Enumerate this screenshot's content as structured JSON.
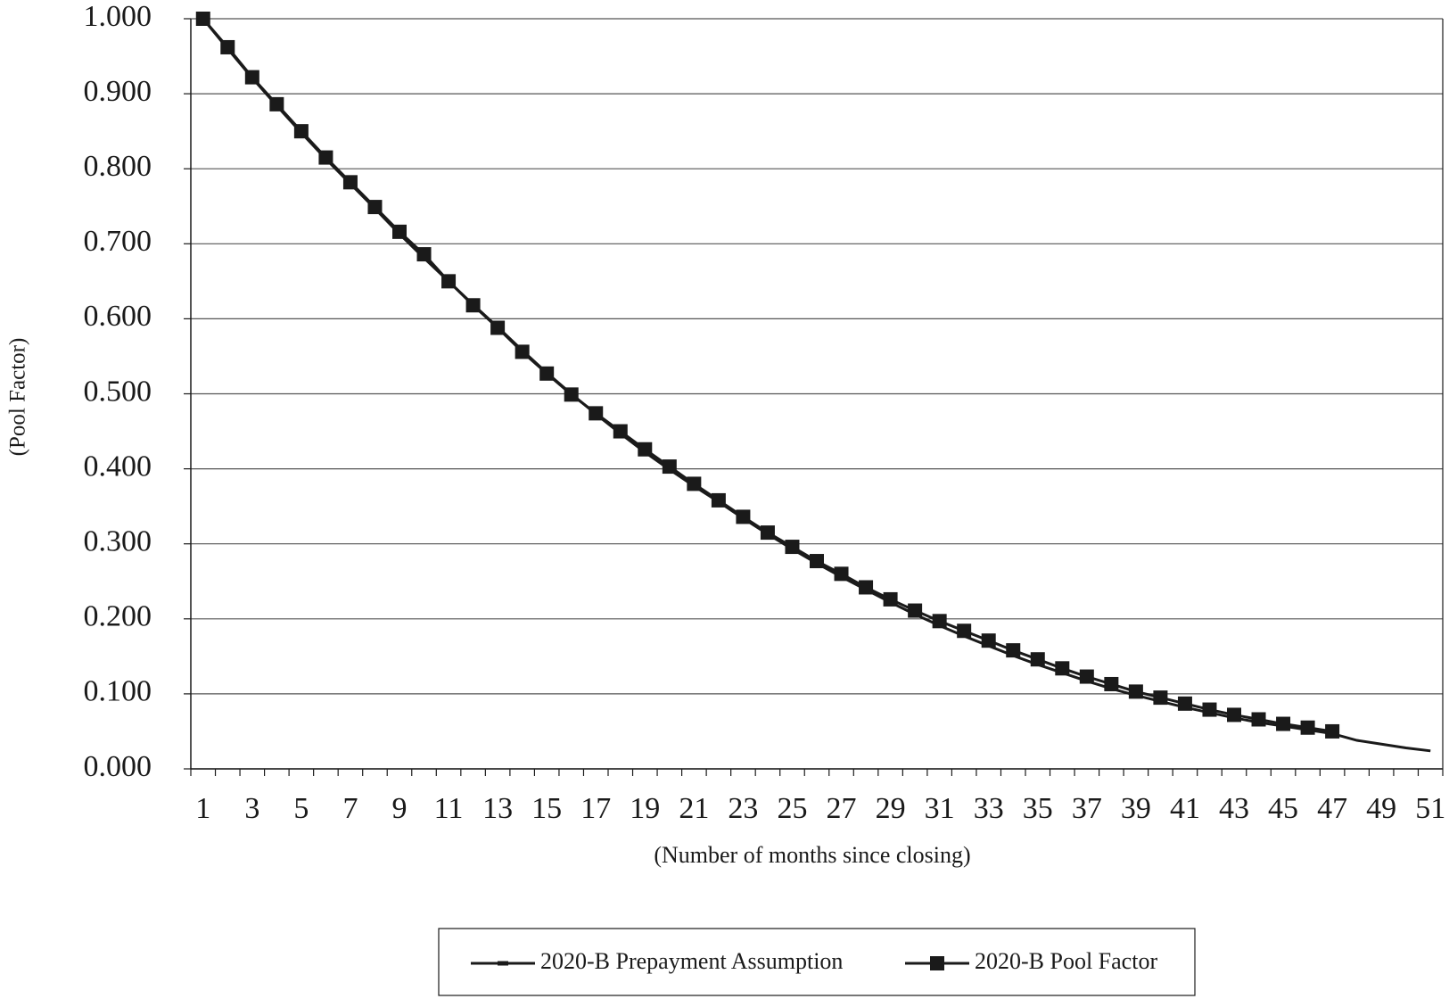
{
  "chart_data": {
    "type": "line",
    "y_label": "(Pool Factor)",
    "x_label": "(Number of months since closing)",
    "categories": [
      "1",
      null,
      "3",
      null,
      "5",
      null,
      "7",
      null,
      "9",
      null,
      "11",
      null,
      "13",
      null,
      "15",
      null,
      "17",
      null,
      "19",
      null,
      "21",
      null,
      "23",
      null,
      "25",
      null,
      "27",
      null,
      "29",
      null,
      "31",
      null,
      "33",
      null,
      "35",
      null,
      "37",
      null,
      "39",
      null,
      "41",
      null,
      "43",
      null,
      "45",
      null,
      "47",
      null,
      "49",
      null,
      "51"
    ],
    "series": [
      {
        "name": "2020-B Prepayment Assumption",
        "color": "#1a1a1a",
        "marker": "none",
        "values": [
          1.0,
          0.96,
          0.921,
          0.884,
          0.848,
          0.813,
          0.78,
          0.747,
          0.713,
          0.681,
          0.65,
          0.619,
          0.589,
          0.558,
          0.528,
          0.5,
          0.473,
          0.447,
          0.422,
          0.399,
          0.377,
          0.356,
          0.334,
          0.313,
          0.293,
          0.274,
          0.256,
          0.239,
          0.222,
          0.206,
          0.191,
          0.177,
          0.164,
          0.151,
          0.139,
          0.128,
          0.117,
          0.107,
          0.098,
          0.09,
          0.082,
          0.075,
          0.068,
          0.062,
          0.057,
          0.052,
          0.047,
          0.038,
          0.033,
          0.028,
          0.024
        ]
      },
      {
        "name": "2020-B Pool Factor",
        "color": "#1a1a1a",
        "marker": "square",
        "values": [
          1.0,
          0.962,
          0.922,
          0.886,
          0.85,
          0.815,
          0.782,
          0.749,
          0.716,
          0.686,
          0.65,
          0.618,
          0.588,
          0.556,
          0.527,
          0.499,
          0.474,
          0.45,
          0.426,
          0.403,
          0.38,
          0.358,
          0.336,
          0.315,
          0.296,
          0.277,
          0.26,
          0.242,
          0.226,
          0.211,
          0.197,
          0.184,
          0.171,
          0.158,
          0.146,
          0.134,
          0.123,
          0.113,
          0.103,
          0.095,
          0.087,
          0.079,
          0.072,
          0.066,
          0.06,
          0.055,
          0.05,
          null,
          null,
          null,
          null
        ]
      }
    ],
    "ylim": [
      0,
      1
    ],
    "yticks": [
      {
        "value": 0,
        "label": "0.000"
      },
      {
        "value": 0.1,
        "label": "0.100"
      },
      {
        "value": 0.2,
        "label": "0.200"
      },
      {
        "value": 0.3,
        "label": "0.300"
      },
      {
        "value": 0.4,
        "label": "0.400"
      },
      {
        "value": 0.5,
        "label": "0.500"
      },
      {
        "value": 0.6,
        "label": "0.600"
      },
      {
        "value": 0.7,
        "label": "0.700"
      },
      {
        "value": 0.8,
        "label": "0.800"
      },
      {
        "value": 0.9,
        "label": "0.900"
      },
      {
        "value": 1,
        "label": "1.000"
      }
    ],
    "grid": true,
    "legend": "bottom"
  }
}
